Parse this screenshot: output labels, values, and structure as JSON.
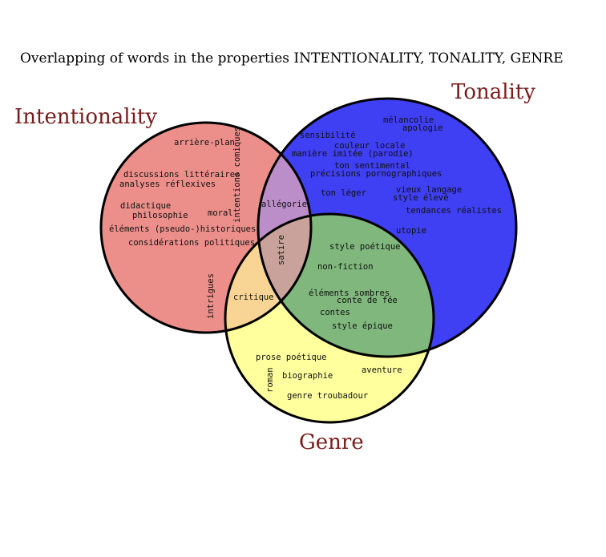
{
  "title": "Overlapping of words in the properties INTENTIONALITY, TONALITY, GENRE",
  "sets": {
    "intentionality": {
      "label": "Intentionality",
      "color": "#ec8f8a"
    },
    "tonality": {
      "label": "Tonality",
      "color": "#3f3ff3"
    },
    "genre": {
      "label": "Genre",
      "color": "#ffff9e"
    }
  },
  "overlap_colors": {
    "intentionality_tonality": "#bb8dc9",
    "intentionality_genre": "#f9d595",
    "tonality_genre": "#7fb77c",
    "all": "#c9a39b"
  },
  "words": {
    "arriere_plan": "arrière-plan",
    "intentions_comiques": "intentions comiques",
    "discussions_litteraires": "discussions littéraires",
    "analyses_reflexives": "analyses réflexives",
    "didactique": "didactique",
    "philosophie": "philosophie",
    "moral": "moral",
    "elements_historiques": "éléments (pseudo-)historiques",
    "considerations_politiques": "considérations politiques",
    "intrigues": "intrigues",
    "melancolie": "mélancolie",
    "apologie": "apologie",
    "sensibilite": "sensibilité",
    "couleur_locale": "couleur locale",
    "maniere_imitee": "manière imitée (parodie)",
    "ton_sentimental": "ton sentimental",
    "precisions_pornographiques": "précisions pornographiques",
    "ton_leger": "ton léger",
    "vieux_langage": "vieux langage",
    "style_eleve": "style élevé",
    "tendances_realistes": "tendances réalistes",
    "utopie": "utopie",
    "allegorie": "allégorie",
    "satire": "satire",
    "critique": "critique",
    "style_poetique": "style poétique",
    "non_fiction": "non-fiction",
    "elements_sombres": "éléments sombres",
    "conte_de_fee": "conte de fée",
    "contes": "contes",
    "style_epique": "style épique",
    "prose_poetique": "prose poétique",
    "roman": "roman",
    "biographie": "biographie",
    "aventure": "aventure",
    "genre_troubadour": "genre troubadour"
  }
}
